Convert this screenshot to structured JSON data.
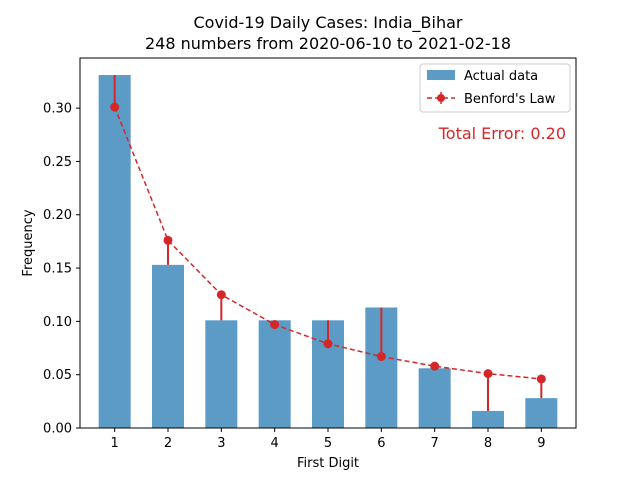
{
  "chart_data": {
    "type": "bar",
    "title_line1": "Covid-19 Daily Cases: India_Bihar",
    "title_line2": "248 numbers from 2020-06-10 to 2021-02-18",
    "xlabel": "First Digit",
    "ylabel": "Frequency",
    "categories": [
      "1",
      "2",
      "3",
      "4",
      "5",
      "6",
      "7",
      "8",
      "9"
    ],
    "x": [
      1,
      2,
      3,
      4,
      5,
      6,
      7,
      8,
      9
    ],
    "xlim": [
      0.35,
      9.65
    ],
    "ylim": [
      0,
      0.347
    ],
    "yticks": [
      0.0,
      0.05,
      0.1,
      0.15,
      0.2,
      0.25,
      0.3
    ],
    "ytick_labels": [
      "0.00",
      "0.05",
      "0.10",
      "0.15",
      "0.20",
      "0.25",
      "0.30"
    ],
    "series": [
      {
        "name": "Actual data",
        "kind": "bar",
        "color": "#5b9bc6",
        "values": [
          0.331,
          0.153,
          0.101,
          0.101,
          0.101,
          0.113,
          0.056,
          0.016,
          0.028
        ]
      },
      {
        "name": "Benford's Law",
        "kind": "line-errorbar",
        "color": "#d62728",
        "values": [
          0.301,
          0.176,
          0.125,
          0.097,
          0.079,
          0.067,
          0.058,
          0.051,
          0.046
        ]
      }
    ],
    "annotation": "Total Error: 0.20",
    "annotation_color": "#d62728",
    "legend_position": "top-right",
    "grid": false
  }
}
